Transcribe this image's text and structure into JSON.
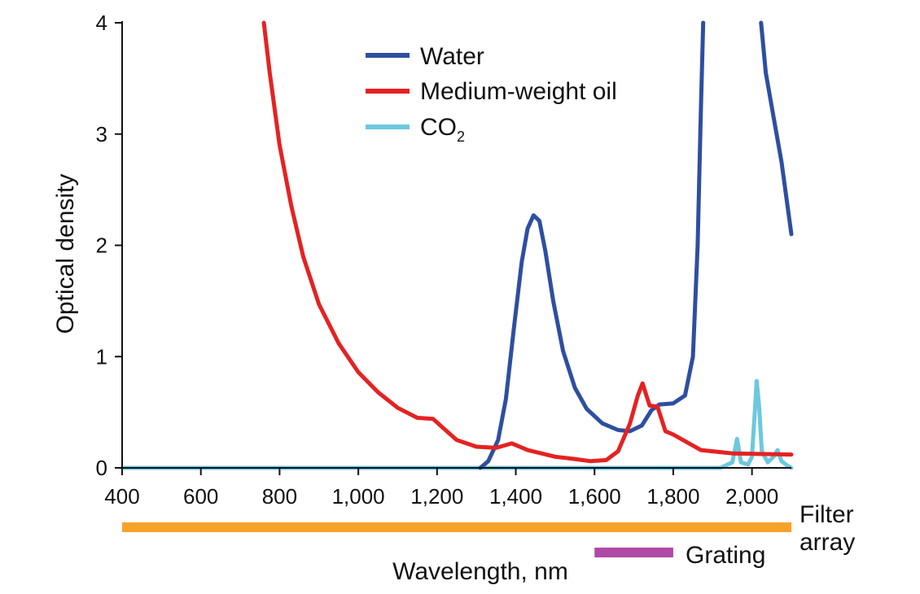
{
  "chart_data": {
    "type": "line",
    "xlabel": "Wavelength, nm",
    "ylabel": "Optical density",
    "xlim": [
      400,
      2100
    ],
    "ylim": [
      0,
      4
    ],
    "x_ticks": [
      400,
      600,
      800,
      1000,
      1200,
      1400,
      1600,
      1800,
      2000
    ],
    "x_tick_labels": [
      "400",
      "600",
      "800",
      "1,000",
      "1,200",
      "1,400",
      "1,600",
      "1,800",
      "2,000"
    ],
    "y_ticks": [
      0,
      1,
      2,
      3,
      4
    ],
    "y_tick_labels": [
      "0",
      "1",
      "2",
      "3",
      "4"
    ],
    "grid": false,
    "legend_position": "top-center",
    "series": [
      {
        "name": "Water",
        "color": "#2e4fa0",
        "points": [
          [
            1310,
            0.0
          ],
          [
            1330,
            0.06
          ],
          [
            1355,
            0.25
          ],
          [
            1375,
            0.62
          ],
          [
            1395,
            1.25
          ],
          [
            1415,
            1.85
          ],
          [
            1430,
            2.15
          ],
          [
            1445,
            2.27
          ],
          [
            1460,
            2.22
          ],
          [
            1475,
            1.95
          ],
          [
            1495,
            1.5
          ],
          [
            1520,
            1.05
          ],
          [
            1550,
            0.72
          ],
          [
            1580,
            0.53
          ],
          [
            1620,
            0.4
          ],
          [
            1660,
            0.34
          ],
          [
            1690,
            0.33
          ],
          [
            1720,
            0.38
          ],
          [
            1745,
            0.52
          ],
          [
            1765,
            0.57
          ],
          [
            1800,
            0.58
          ],
          [
            1830,
            0.65
          ],
          [
            1850,
            1.0
          ],
          [
            1862,
            2.0
          ],
          [
            1870,
            3.2
          ],
          [
            1876,
            4.0
          ]
        ]
      },
      {
        "name": "Water",
        "color": "#2e4fa0",
        "points": [
          [
            2023,
            4.0
          ],
          [
            2035,
            3.55
          ],
          [
            2055,
            3.15
          ],
          [
            2075,
            2.75
          ],
          [
            2100,
            2.1
          ]
        ]
      },
      {
        "name": "Medium-weight oil",
        "color": "#e52222",
        "points": [
          [
            760,
            4.0
          ],
          [
            775,
            3.55
          ],
          [
            800,
            2.9
          ],
          [
            830,
            2.35
          ],
          [
            860,
            1.9
          ],
          [
            900,
            1.47
          ],
          [
            950,
            1.12
          ],
          [
            1000,
            0.86
          ],
          [
            1050,
            0.68
          ],
          [
            1100,
            0.54
          ],
          [
            1150,
            0.45
          ],
          [
            1190,
            0.44
          ],
          [
            1215,
            0.36
          ],
          [
            1250,
            0.25
          ],
          [
            1300,
            0.19
          ],
          [
            1350,
            0.18
          ],
          [
            1390,
            0.22
          ],
          [
            1430,
            0.16
          ],
          [
            1500,
            0.1
          ],
          [
            1550,
            0.08
          ],
          [
            1590,
            0.06
          ],
          [
            1630,
            0.07
          ],
          [
            1660,
            0.15
          ],
          [
            1690,
            0.4
          ],
          [
            1710,
            0.65
          ],
          [
            1722,
            0.76
          ],
          [
            1740,
            0.56
          ],
          [
            1760,
            0.55
          ],
          [
            1780,
            0.33
          ],
          [
            1800,
            0.3
          ],
          [
            1840,
            0.22
          ],
          [
            1870,
            0.16
          ],
          [
            1950,
            0.13
          ],
          [
            2100,
            0.12
          ]
        ]
      },
      {
        "name": "CO2",
        "color": "#6cc8de",
        "points": [
          [
            400,
            0.0
          ],
          [
            1920,
            0.0
          ],
          [
            1950,
            0.05
          ],
          [
            1962,
            0.26
          ],
          [
            1972,
            0.05
          ],
          [
            1990,
            0.03
          ],
          [
            2000,
            0.1
          ],
          [
            2008,
            0.55
          ],
          [
            2012,
            0.78
          ],
          [
            2018,
            0.55
          ],
          [
            2025,
            0.15
          ],
          [
            2040,
            0.05
          ],
          [
            2055,
            0.1
          ],
          [
            2065,
            0.16
          ],
          [
            2075,
            0.06
          ],
          [
            2090,
            0.02
          ],
          [
            2100,
            0.0
          ]
        ]
      }
    ],
    "range_bars": [
      {
        "name": "Filter array",
        "from": 400,
        "to": 2100,
        "color": "#f7a32a"
      },
      {
        "name": "Grating",
        "from": 1600,
        "to": 1800,
        "color": "#b048a8"
      }
    ]
  },
  "legend": {
    "items": [
      {
        "label": "Water",
        "color": "#2e4fa0"
      },
      {
        "label": "Medium-weight oil",
        "color": "#e52222"
      },
      {
        "label": "CO",
        "subscript": "2",
        "color": "#6cc8de"
      }
    ]
  },
  "range_labels": {
    "filter_line1": "Filter",
    "filter_line2": "array",
    "grating": "Grating"
  }
}
